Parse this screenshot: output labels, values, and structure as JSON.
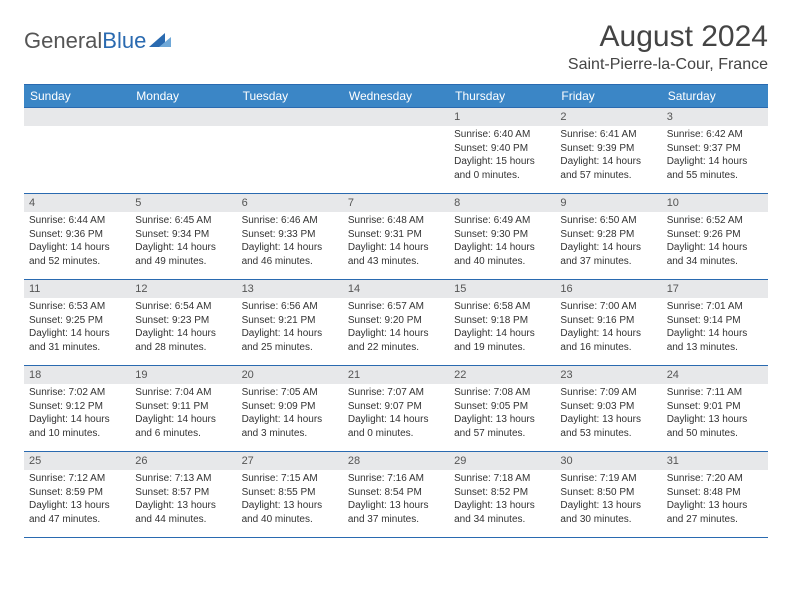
{
  "logo": {
    "general": "General",
    "blue": "Blue"
  },
  "title": "August 2024",
  "location": "Saint-Pierre-la-Cour, France",
  "colors": {
    "header_bg": "#3b86c6",
    "border": "#2a6ab0",
    "daynum_bg": "#e7e8ea",
    "text": "#333333",
    "title_text": "#444444"
  },
  "weekdays": [
    "Sunday",
    "Monday",
    "Tuesday",
    "Wednesday",
    "Thursday",
    "Friday",
    "Saturday"
  ],
  "weeks": [
    [
      null,
      null,
      null,
      null,
      {
        "n": "1",
        "sr": "Sunrise: 6:40 AM",
        "ss": "Sunset: 9:40 PM",
        "d1": "Daylight: 15 hours",
        "d2": "and 0 minutes."
      },
      {
        "n": "2",
        "sr": "Sunrise: 6:41 AM",
        "ss": "Sunset: 9:39 PM",
        "d1": "Daylight: 14 hours",
        "d2": "and 57 minutes."
      },
      {
        "n": "3",
        "sr": "Sunrise: 6:42 AM",
        "ss": "Sunset: 9:37 PM",
        "d1": "Daylight: 14 hours",
        "d2": "and 55 minutes."
      }
    ],
    [
      {
        "n": "4",
        "sr": "Sunrise: 6:44 AM",
        "ss": "Sunset: 9:36 PM",
        "d1": "Daylight: 14 hours",
        "d2": "and 52 minutes."
      },
      {
        "n": "5",
        "sr": "Sunrise: 6:45 AM",
        "ss": "Sunset: 9:34 PM",
        "d1": "Daylight: 14 hours",
        "d2": "and 49 minutes."
      },
      {
        "n": "6",
        "sr": "Sunrise: 6:46 AM",
        "ss": "Sunset: 9:33 PM",
        "d1": "Daylight: 14 hours",
        "d2": "and 46 minutes."
      },
      {
        "n": "7",
        "sr": "Sunrise: 6:48 AM",
        "ss": "Sunset: 9:31 PM",
        "d1": "Daylight: 14 hours",
        "d2": "and 43 minutes."
      },
      {
        "n": "8",
        "sr": "Sunrise: 6:49 AM",
        "ss": "Sunset: 9:30 PM",
        "d1": "Daylight: 14 hours",
        "d2": "and 40 minutes."
      },
      {
        "n": "9",
        "sr": "Sunrise: 6:50 AM",
        "ss": "Sunset: 9:28 PM",
        "d1": "Daylight: 14 hours",
        "d2": "and 37 minutes."
      },
      {
        "n": "10",
        "sr": "Sunrise: 6:52 AM",
        "ss": "Sunset: 9:26 PM",
        "d1": "Daylight: 14 hours",
        "d2": "and 34 minutes."
      }
    ],
    [
      {
        "n": "11",
        "sr": "Sunrise: 6:53 AM",
        "ss": "Sunset: 9:25 PM",
        "d1": "Daylight: 14 hours",
        "d2": "and 31 minutes."
      },
      {
        "n": "12",
        "sr": "Sunrise: 6:54 AM",
        "ss": "Sunset: 9:23 PM",
        "d1": "Daylight: 14 hours",
        "d2": "and 28 minutes."
      },
      {
        "n": "13",
        "sr": "Sunrise: 6:56 AM",
        "ss": "Sunset: 9:21 PM",
        "d1": "Daylight: 14 hours",
        "d2": "and 25 minutes."
      },
      {
        "n": "14",
        "sr": "Sunrise: 6:57 AM",
        "ss": "Sunset: 9:20 PM",
        "d1": "Daylight: 14 hours",
        "d2": "and 22 minutes."
      },
      {
        "n": "15",
        "sr": "Sunrise: 6:58 AM",
        "ss": "Sunset: 9:18 PM",
        "d1": "Daylight: 14 hours",
        "d2": "and 19 minutes."
      },
      {
        "n": "16",
        "sr": "Sunrise: 7:00 AM",
        "ss": "Sunset: 9:16 PM",
        "d1": "Daylight: 14 hours",
        "d2": "and 16 minutes."
      },
      {
        "n": "17",
        "sr": "Sunrise: 7:01 AM",
        "ss": "Sunset: 9:14 PM",
        "d1": "Daylight: 14 hours",
        "d2": "and 13 minutes."
      }
    ],
    [
      {
        "n": "18",
        "sr": "Sunrise: 7:02 AM",
        "ss": "Sunset: 9:12 PM",
        "d1": "Daylight: 14 hours",
        "d2": "and 10 minutes."
      },
      {
        "n": "19",
        "sr": "Sunrise: 7:04 AM",
        "ss": "Sunset: 9:11 PM",
        "d1": "Daylight: 14 hours",
        "d2": "and 6 minutes."
      },
      {
        "n": "20",
        "sr": "Sunrise: 7:05 AM",
        "ss": "Sunset: 9:09 PM",
        "d1": "Daylight: 14 hours",
        "d2": "and 3 minutes."
      },
      {
        "n": "21",
        "sr": "Sunrise: 7:07 AM",
        "ss": "Sunset: 9:07 PM",
        "d1": "Daylight: 14 hours",
        "d2": "and 0 minutes."
      },
      {
        "n": "22",
        "sr": "Sunrise: 7:08 AM",
        "ss": "Sunset: 9:05 PM",
        "d1": "Daylight: 13 hours",
        "d2": "and 57 minutes."
      },
      {
        "n": "23",
        "sr": "Sunrise: 7:09 AM",
        "ss": "Sunset: 9:03 PM",
        "d1": "Daylight: 13 hours",
        "d2": "and 53 minutes."
      },
      {
        "n": "24",
        "sr": "Sunrise: 7:11 AM",
        "ss": "Sunset: 9:01 PM",
        "d1": "Daylight: 13 hours",
        "d2": "and 50 minutes."
      }
    ],
    [
      {
        "n": "25",
        "sr": "Sunrise: 7:12 AM",
        "ss": "Sunset: 8:59 PM",
        "d1": "Daylight: 13 hours",
        "d2": "and 47 minutes."
      },
      {
        "n": "26",
        "sr": "Sunrise: 7:13 AM",
        "ss": "Sunset: 8:57 PM",
        "d1": "Daylight: 13 hours",
        "d2": "and 44 minutes."
      },
      {
        "n": "27",
        "sr": "Sunrise: 7:15 AM",
        "ss": "Sunset: 8:55 PM",
        "d1": "Daylight: 13 hours",
        "d2": "and 40 minutes."
      },
      {
        "n": "28",
        "sr": "Sunrise: 7:16 AM",
        "ss": "Sunset: 8:54 PM",
        "d1": "Daylight: 13 hours",
        "d2": "and 37 minutes."
      },
      {
        "n": "29",
        "sr": "Sunrise: 7:18 AM",
        "ss": "Sunset: 8:52 PM",
        "d1": "Daylight: 13 hours",
        "d2": "and 34 minutes."
      },
      {
        "n": "30",
        "sr": "Sunrise: 7:19 AM",
        "ss": "Sunset: 8:50 PM",
        "d1": "Daylight: 13 hours",
        "d2": "and 30 minutes."
      },
      {
        "n": "31",
        "sr": "Sunrise: 7:20 AM",
        "ss": "Sunset: 8:48 PM",
        "d1": "Daylight: 13 hours",
        "d2": "and 27 minutes."
      }
    ]
  ]
}
